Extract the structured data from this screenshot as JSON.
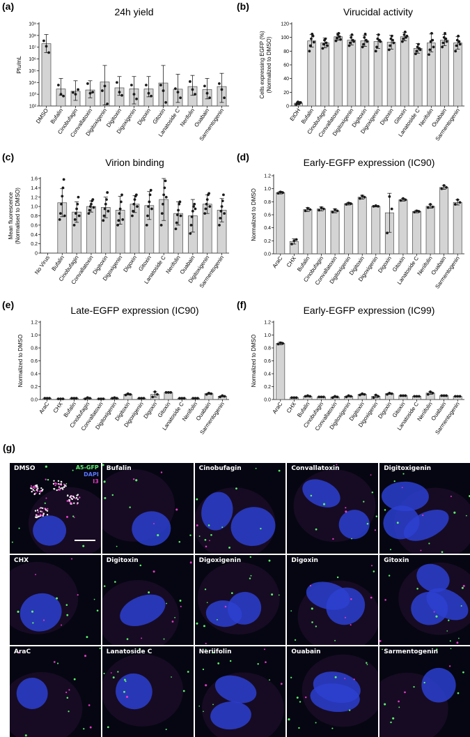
{
  "colors": {
    "bar": "#d4d4d4",
    "bar_edge": "#4a4a4a",
    "point": "#1a1a1a",
    "cell_bg": "#060612",
    "nucleus": "#2b3fd0",
    "gfp": "#5cf06c",
    "i3": "#e23bc4"
  },
  "chart_data": [
    {
      "id": "a",
      "panel_label": "(a)",
      "type": "bar",
      "title": "24h yield",
      "ylabel": "Pfu/mL",
      "yscale": "log",
      "ylim": [
        100,
        1000000000
      ],
      "yticks": [
        100,
        1000,
        10000,
        100000,
        1000000,
        10000000,
        100000000,
        1000000000
      ],
      "ytick_labels": [
        "10²",
        "10³",
        "10⁴",
        "10⁵",
        "10⁶",
        "10⁷",
        "10⁸",
        "10⁹"
      ],
      "categories": [
        "DMSO",
        "Bufalin",
        "Cinobufagin",
        "Convallatoxin",
        "Digitoxigenin",
        "Digitoxin",
        "Digoxigenin",
        "Digoxin",
        "Gitoxin",
        "Lanatoside C",
        "Nerifolin",
        "Ouabain",
        "Sarmentogenin"
      ],
      "values": [
        20000000,
        2800,
        1800,
        2300,
        11000,
        3500,
        2900,
        2800,
        9000,
        2700,
        4500,
        2500,
        4500
      ],
      "err_low": [
        3500000,
        800,
        300,
        500,
        120,
        800,
        150,
        600,
        100,
        200,
        800,
        400,
        200
      ],
      "err_high": [
        120000000,
        22000,
        14000,
        14000,
        280000,
        32000,
        32000,
        32000,
        280000,
        50000,
        40000,
        22000,
        60000
      ],
      "points": [
        [
          35000000,
          12000000,
          3500000
        ],
        [
          6000,
          1000,
          700
        ],
        [
          1400,
          1000,
          2500
        ],
        [
          8000,
          1200,
          1500
        ],
        [
          2000,
          5000,
          150
        ],
        [
          10000,
          1500,
          800
        ],
        [
          6000,
          1000,
          400
        ],
        [
          6000,
          1200,
          700
        ],
        [
          6000,
          2000,
          200
        ],
        [
          3000,
          1500,
          500
        ],
        [
          12000,
          2500,
          1000
        ],
        [
          5000,
          1200,
          500
        ],
        [
          8000,
          2500,
          500
        ]
      ]
    },
    {
      "id": "b",
      "panel_label": "(b)",
      "type": "bar",
      "title": "Virucidal activity",
      "ylabel": "Cells expressing EGFP (%)\n(Normalized to DMSO)",
      "ylim": [
        0,
        120
      ],
      "yticks": [
        0,
        20,
        40,
        60,
        80,
        100,
        120
      ],
      "categories": [
        "EtOH",
        "Bufalin",
        "Cinobufagin",
        "Convallatoxin",
        "Digitoxigenin",
        "Digitoxin",
        "Digoxigenin",
        "Digoxin",
        "Gitoxin",
        "Lanatoside C",
        "Nerifolin",
        "Ouabain",
        "Sarmentogenin"
      ],
      "values": [
        4,
        95,
        92,
        101,
        96,
        95,
        94,
        93,
        101,
        84,
        92,
        96,
        92
      ],
      "errors": [
        2,
        9,
        7,
        5,
        7,
        8,
        10,
        10,
        6,
        7,
        13,
        8,
        9
      ],
      "points": [
        [
          2,
          4,
          6,
          3,
          5,
          5
        ],
        [
          80,
          88,
          98,
          105,
          102,
          93
        ],
        [
          84,
          90,
          96,
          98,
          92,
          88
        ],
        [
          95,
          99,
          104,
          106,
          101,
          97
        ],
        [
          88,
          92,
          100,
          104,
          96,
          94
        ],
        [
          86,
          90,
          100,
          105,
          96,
          94
        ],
        [
          80,
          86,
          98,
          104,
          96,
          94
        ],
        [
          82,
          88,
          98,
          102,
          96,
          92
        ],
        [
          94,
          98,
          104,
          108,
          100,
          102
        ],
        [
          76,
          80,
          86,
          90,
          84,
          82
        ],
        [
          75,
          82,
          94,
          106,
          96,
          86
        ],
        [
          86,
          92,
          100,
          106,
          98,
          94
        ],
        [
          80,
          88,
          96,
          102,
          94,
          90
        ]
      ]
    },
    {
      "id": "c",
      "panel_label": "(c)",
      "type": "bar",
      "title": "Virion binding",
      "ylabel": "Mean fluorescence\n(Normalised to DMSO)",
      "ylim": [
        0,
        1.6
      ],
      "yticks": [
        0,
        0.2,
        0.4,
        0.6,
        0.8,
        1.0,
        1.2,
        1.4,
        1.6
      ],
      "ytick_labels": [
        "0",
        "0.2",
        "0.4",
        "0.6",
        "0.8",
        "1.0",
        "1.2",
        "1.4",
        "1.6"
      ],
      "categories": [
        "No Virus",
        "Bufalin",
        "Cinobufagin",
        "Convallatoxin",
        "Digitoxin",
        "Digoxigenin",
        "Digoxin",
        "Gitoxin",
        "Lanatoside C",
        "Nerifolin",
        "Ouabain",
        "Digitoxigenin",
        "Sarmentogenin"
      ],
      "values": [
        0.0,
        1.08,
        0.88,
        1.0,
        0.98,
        0.92,
        1.05,
        1.02,
        1.15,
        0.85,
        0.8,
        1.05,
        0.92
      ],
      "errors": [
        0,
        0.3,
        0.22,
        0.12,
        0.22,
        0.3,
        0.18,
        0.3,
        0.45,
        0.25,
        0.35,
        0.2,
        0.25
      ],
      "points": [
        [],
        [
          0.72,
          0.85,
          1.05,
          1.22,
          1.4,
          1.58,
          0.8
        ],
        [
          0.6,
          0.72,
          0.85,
          0.95,
          1.05,
          1.2,
          0.8
        ],
        [
          0.85,
          0.92,
          1.0,
          1.05,
          1.12,
          1.15,
          0.98
        ],
        [
          0.7,
          0.8,
          0.95,
          1.05,
          1.15,
          1.3,
          0.9
        ],
        [
          0.6,
          0.7,
          0.85,
          0.95,
          1.1,
          1.25,
          0.72
        ],
        [
          0.8,
          0.9,
          1.05,
          1.15,
          1.22,
          1.25,
          1.0
        ],
        [
          0.6,
          0.8,
          1.0,
          1.1,
          1.25,
          1.35,
          0.95
        ],
        [
          0.6,
          0.85,
          1.05,
          1.25,
          1.4,
          1.55,
          1.2
        ],
        [
          0.52,
          0.65,
          0.82,
          0.92,
          1.05,
          1.1,
          0.8
        ],
        [
          0.42,
          0.6,
          0.78,
          0.9,
          1.0,
          1.05,
          0.95
        ],
        [
          0.85,
          0.95,
          1.05,
          1.15,
          1.25,
          1.28,
          1.0
        ],
        [
          0.6,
          0.75,
          0.9,
          1.0,
          1.12,
          1.25,
          0.85
        ]
      ]
    },
    {
      "id": "d",
      "panel_label": "(d)",
      "type": "bar",
      "title": "Early-EGFP expression (IC90)",
      "ylabel": "Normalized to DMSO",
      "ylim": [
        0,
        1.2
      ],
      "yticks": [
        0,
        0.2,
        0.4,
        0.6,
        0.8,
        1.0,
        1.2
      ],
      "ytick_labels": [
        "0.0",
        "0.2",
        "0.4",
        "0.6",
        "0.8",
        "1.0",
        "1.2"
      ],
      "categories": [
        "AraC",
        "CHX",
        "Bufalin",
        "Cinobufagin",
        "Convallatoxin",
        "Digitoxigenin",
        "Digitoxin",
        "Digoxigenin",
        "Digoxin",
        "Gitoxin",
        "Lanatoside C",
        "Neriifolin",
        "Ouabain",
        "Sarmentogenin"
      ],
      "values": [
        0.94,
        0.19,
        0.68,
        0.69,
        0.66,
        0.77,
        0.87,
        0.73,
        0.63,
        0.83,
        0.65,
        0.73,
        1.02,
        0.79
      ],
      "errors": [
        0.02,
        0.04,
        0.03,
        0.03,
        0.03,
        0.02,
        0.03,
        0.01,
        0.3,
        0.02,
        0.02,
        0.03,
        0.03,
        0.04
      ],
      "points": [
        [
          0.93,
          0.95,
          0.94
        ],
        [
          0.15,
          0.2,
          0.22
        ],
        [
          0.66,
          0.7,
          0.68
        ],
        [
          0.67,
          0.71,
          0.69
        ],
        [
          0.64,
          0.68,
          0.66
        ],
        [
          0.76,
          0.78,
          0.77
        ],
        [
          0.85,
          0.89,
          0.87
        ],
        [
          0.73,
          0.74,
          0.73
        ],
        [
          0.32,
          0.88,
          0.69
        ],
        [
          0.82,
          0.85,
          0.83
        ],
        [
          0.64,
          0.66,
          0.65
        ],
        [
          0.71,
          0.76,
          0.72
        ],
        [
          1.0,
          1.05,
          1.02
        ],
        [
          0.76,
          0.83,
          0.79
        ]
      ]
    },
    {
      "id": "e",
      "panel_label": "(e)",
      "type": "bar",
      "title": "Late-EGFP expression (IC90)",
      "ylabel": "Normalized to DMSO",
      "ylim": [
        0,
        1.2
      ],
      "yticks": [
        0,
        0.2,
        0.4,
        0.6,
        0.8,
        1.0,
        1.2
      ],
      "ytick_labels": [
        "0.0",
        "0.2",
        "0.4",
        "0.6",
        "0.8",
        "1.0",
        "1.2"
      ],
      "categories": [
        "AraC",
        "CHX",
        "Bufalin",
        "Cinobufagin",
        "Convallatoxin",
        "Digitoxigenin",
        "Digitoxin",
        "Digoxigenin",
        "Digoxin",
        "Gitoxin",
        "Lanatoside C",
        "Neriifolin",
        "Ouabain",
        "Sarmentogenin"
      ],
      "values": [
        0.02,
        0.01,
        0.02,
        0.02,
        0.01,
        0.02,
        0.08,
        0.02,
        0.08,
        0.11,
        0.02,
        0.02,
        0.09,
        0.05
      ],
      "errors": [
        0.005,
        0.005,
        0.005,
        0.01,
        0.005,
        0.01,
        0.01,
        0.005,
        0.04,
        0.005,
        0.005,
        0.005,
        0.01,
        0.01
      ],
      "points": [
        [
          0.02,
          0.02,
          0.02
        ],
        [
          0.01,
          0.01,
          0.01
        ],
        [
          0.02,
          0.02,
          0.02
        ],
        [
          0.01,
          0.03,
          0.02
        ],
        [
          0.01,
          0.01,
          0.01
        ],
        [
          0.02,
          0.03,
          0.02
        ],
        [
          0.07,
          0.09,
          0.08
        ],
        [
          0.02,
          0.02,
          0.02
        ],
        [
          0.04,
          0.12,
          0.08
        ],
        [
          0.11,
          0.11,
          0.11
        ],
        [
          0.02,
          0.02,
          0.02
        ],
        [
          0.02,
          0.02,
          0.02
        ],
        [
          0.08,
          0.1,
          0.09
        ],
        [
          0.04,
          0.06,
          0.05
        ]
      ]
    },
    {
      "id": "f",
      "panel_label": "(f)",
      "type": "bar",
      "title": "Early-EGFP expression (IC99)",
      "ylabel": "Normalized to DMSO",
      "ylim": [
        0,
        1.2
      ],
      "yticks": [
        0,
        0.2,
        0.4,
        0.6,
        0.8,
        1.0,
        1.2
      ],
      "ytick_labels": [
        "0.0",
        "0.2",
        "0.4",
        "0.6",
        "0.8",
        "1.0",
        "1.2"
      ],
      "categories": [
        "AraC",
        "CHX",
        "Bufalin",
        "Cinobufagin",
        "Convallatoxin",
        "Digitoxigenin",
        "Digitoxin",
        "Digoxigenin",
        "Digoxin",
        "Gitoxin",
        "Lanatoside C",
        "Neriifolin",
        "Ouabain",
        "Sarmentogenin"
      ],
      "values": [
        0.87,
        0.03,
        0.05,
        0.04,
        0.04,
        0.05,
        0.08,
        0.05,
        0.09,
        0.06,
        0.05,
        0.1,
        0.06,
        0.05
      ],
      "errors": [
        0.02,
        0.005,
        0.01,
        0.005,
        0.01,
        0.01,
        0.01,
        0.02,
        0.01,
        0.005,
        0.005,
        0.02,
        0.005,
        0.005
      ],
      "points": [
        [
          0.86,
          0.88,
          0.87
        ],
        [
          0.03,
          0.03,
          0.03
        ],
        [
          0.05,
          0.06,
          0.05
        ],
        [
          0.04,
          0.04,
          0.04
        ],
        [
          0.03,
          0.05,
          0.04
        ],
        [
          0.04,
          0.06,
          0.05
        ],
        [
          0.07,
          0.09,
          0.08
        ],
        [
          0.03,
          0.07,
          0.05
        ],
        [
          0.08,
          0.1,
          0.09
        ],
        [
          0.06,
          0.06,
          0.06
        ],
        [
          0.05,
          0.05,
          0.05
        ],
        [
          0.08,
          0.12,
          0.1
        ],
        [
          0.06,
          0.06,
          0.06
        ],
        [
          0.05,
          0.05,
          0.05
        ]
      ]
    }
  ],
  "micrographs": {
    "panel_label": "(g)",
    "legend": [
      "A5-GFP",
      "DAPI",
      "I3"
    ],
    "tiles": [
      {
        "label": "DMSO",
        "legend": true,
        "scalebar": true
      },
      {
        "label": "Bufalin"
      },
      {
        "label": "Cinobufagin"
      },
      {
        "label": "Convallatoxin"
      },
      {
        "label": "Digitoxigenin"
      },
      {
        "label": "CHX"
      },
      {
        "label": "Digitoxin"
      },
      {
        "label": "Digoxigenin"
      },
      {
        "label": "Digoxin"
      },
      {
        "label": "Gitoxin"
      },
      {
        "label": "AraC"
      },
      {
        "label": "Lanatoside C"
      },
      {
        "label": "Neriifolin"
      },
      {
        "label": "Ouabain"
      },
      {
        "label": "Sarmentogenin"
      }
    ]
  }
}
